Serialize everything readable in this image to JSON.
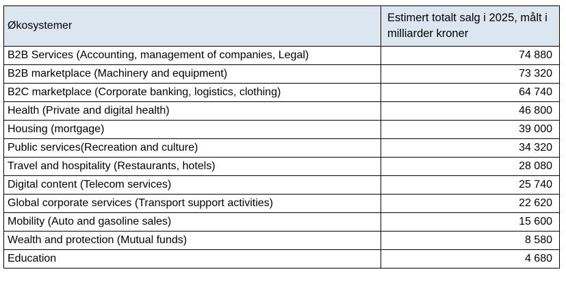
{
  "table": {
    "headers": [
      "Økosystemer",
      "Estimert totalt salg i 2025, målt i milliarder kroner"
    ],
    "rows": [
      {
        "name": "B2B Services (Accounting, management of companies, Legal)",
        "value": "74 880"
      },
      {
        "name": "B2B marketplace (Machinery and equipment)",
        "value": "73 320"
      },
      {
        "name": "B2C marketplace (Corporate banking, logistics, clothing)",
        "value": "64 740"
      },
      {
        "name": "Health (Private and digital health)",
        "value": "46 800"
      },
      {
        "name": "Housing (mortgage)",
        "value": "39 000"
      },
      {
        "name": "Public services(Recreation and culture)",
        "value": "34 320"
      },
      {
        "name": "Travel and hospitality (Restaurants, hotels)",
        "value": "28 080"
      },
      {
        "name": "Digital content (Telecom services)",
        "value": "25 740"
      },
      {
        "name": "Global corporate services (Transport support activities)",
        "value": "22 620"
      },
      {
        "name": "Mobility (Auto and gasoline sales)",
        "value": "15 600"
      },
      {
        "name": "Wealth and protection (Mutual funds)",
        "value": "8 580"
      },
      {
        "name": "Education",
        "value": "4 680"
      }
    ]
  },
  "colors": {
    "header_background": "#dce6f1",
    "border": "#000000"
  }
}
